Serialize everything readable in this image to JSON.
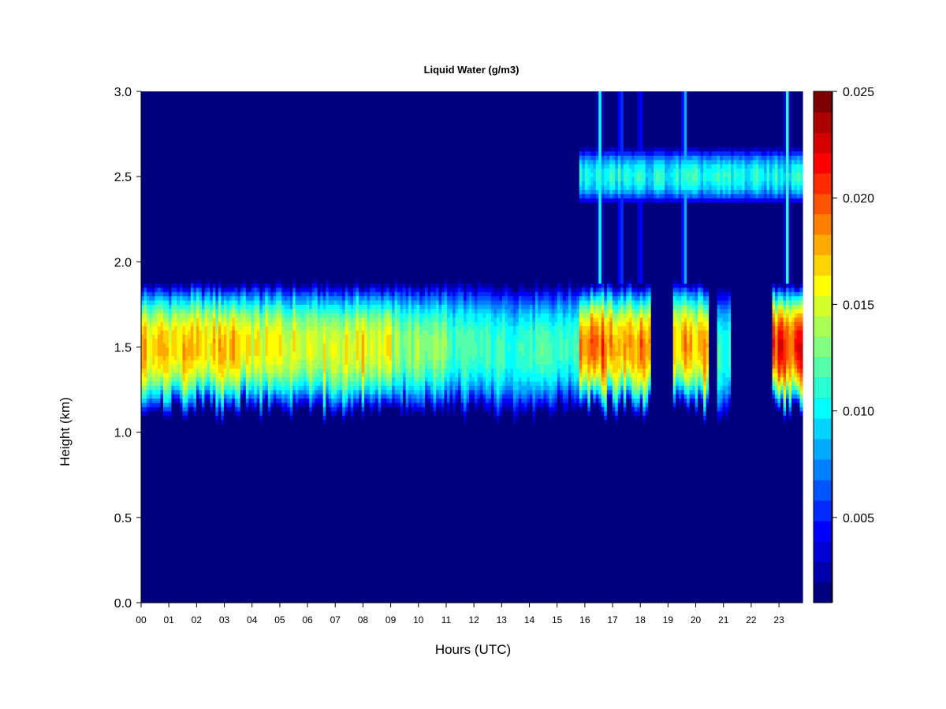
{
  "chart_data": {
    "type": "heatmap",
    "title": "Liquid Water (g/m3)",
    "xlabel": "Hours (UTC)",
    "ylabel": "Height (km)",
    "xlim": [
      0,
      23.85
    ],
    "ylim": [
      0,
      3.0
    ],
    "x_ticks": [
      "00",
      "01",
      "02",
      "03",
      "04",
      "05",
      "06",
      "07",
      "08",
      "09",
      "10",
      "11",
      "12",
      "13",
      "14",
      "15",
      "16",
      "17",
      "18",
      "19",
      "20",
      "21",
      "22",
      "23"
    ],
    "y_ticks": [
      "0.0",
      "0.5",
      "1.0",
      "1.5",
      "2.0",
      "2.5",
      "3.0"
    ],
    "colorbar": {
      "min": 0.001,
      "max": 0.025,
      "ticks": [
        "0.005",
        "0.010",
        "0.015",
        "0.020",
        "0.025"
      ],
      "colors": [
        "#00007F",
        "#0000AA",
        "#0000D4",
        "#0000FF",
        "#002AFF",
        "#0055FF",
        "#0080FF",
        "#00AAFF",
        "#00D4FF",
        "#00FFFF",
        "#2AFFD4",
        "#55FFAA",
        "#80FF80",
        "#AAFF55",
        "#D4FF2A",
        "#FFFF00",
        "#FFD400",
        "#FFAA00",
        "#FF8000",
        "#FF5500",
        "#FF2A00",
        "#FF0000",
        "#D40000",
        "#AA0000",
        "#7F0000"
      ]
    },
    "background_value": 0.001,
    "layers": [
      {
        "name": "low",
        "base_km": 1.18,
        "top_km": 1.88
      },
      {
        "name": "upper",
        "base_km": 2.33,
        "top_km": 2.68
      }
    ],
    "low_layer_segments": [
      {
        "start_h": 0.0,
        "end_h": 3.6,
        "peak": 0.017
      },
      {
        "start_h": 3.6,
        "end_h": 6.0,
        "peak": 0.0155
      },
      {
        "start_h": 6.0,
        "end_h": 9.0,
        "peak": 0.0155
      },
      {
        "start_h": 9.0,
        "end_h": 11.0,
        "peak": 0.0135
      },
      {
        "start_h": 11.0,
        "end_h": 15.8,
        "peak": 0.0115
      },
      {
        "start_h": 15.8,
        "end_h": 18.4,
        "peak": 0.0185
      },
      {
        "start_h": 19.2,
        "end_h": 20.5,
        "peak": 0.0175
      },
      {
        "start_h": 20.8,
        "end_h": 21.3,
        "peak": 0.011
      },
      {
        "start_h": 22.8,
        "end_h": 23.85,
        "peak": 0.0205
      }
    ],
    "low_layer_hotspots": [
      {
        "hour": 1.4,
        "value": 0.018
      },
      {
        "hour": 3.3,
        "value": 0.0185
      },
      {
        "hour": 5.0,
        "value": 0.017
      },
      {
        "hour": 8.0,
        "value": 0.0195
      },
      {
        "hour": 16.6,
        "value": 0.0215
      },
      {
        "hour": 18.1,
        "value": 0.019
      },
      {
        "hour": 19.6,
        "value": 0.0215
      },
      {
        "hour": 23.3,
        "value": 0.022
      }
    ],
    "upper_layer_segments": [
      {
        "start_h": 15.8,
        "end_h": 23.85,
        "peak": 0.0115
      }
    ],
    "vertical_plumes": [
      {
        "hour": 16.55,
        "value": 0.01
      },
      {
        "hour": 17.3,
        "value": 0.0075
      },
      {
        "hour": 18.0,
        "value": 0.0065
      },
      {
        "hour": 19.6,
        "value": 0.01
      },
      {
        "hour": 23.3,
        "value": 0.011
      }
    ]
  }
}
